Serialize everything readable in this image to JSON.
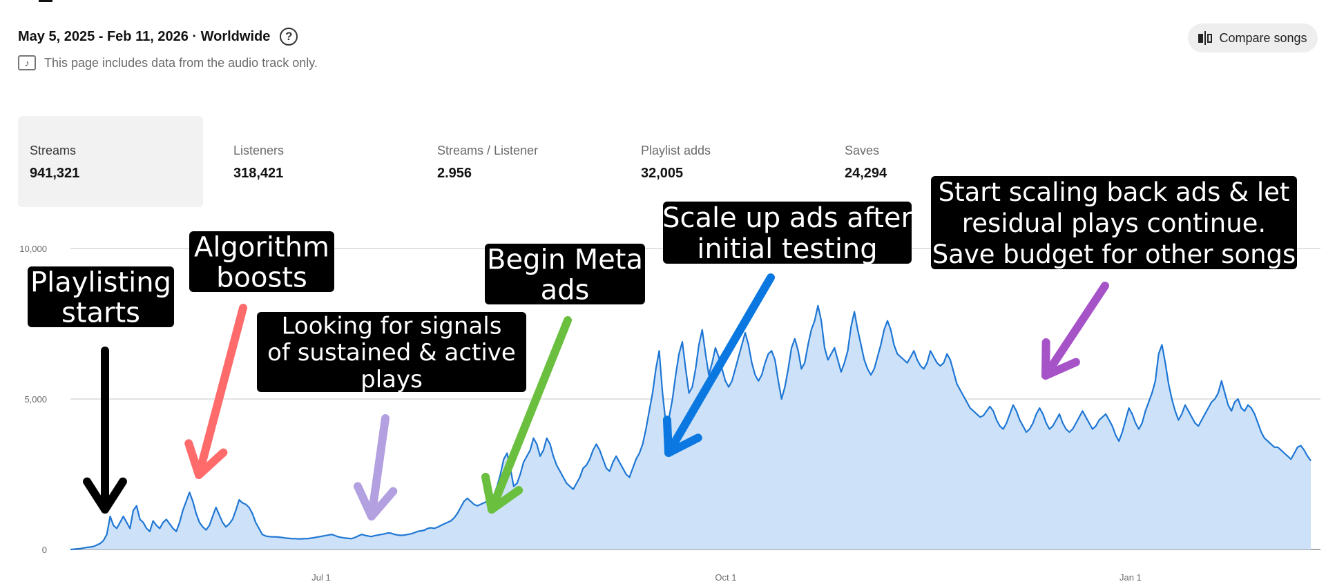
{
  "header": {
    "date_range": "May 5, 2025 - Feb 11, 2026 · Worldwide",
    "help_icon": "question-circle-icon",
    "audio_note": "This page includes data from the audio track only.",
    "audio_note_icon": "music-note-icon"
  },
  "compare": {
    "label": "Compare songs",
    "icon": "compare-icon"
  },
  "metrics": [
    {
      "label": "Streams",
      "value": "941,321",
      "selected": true
    },
    {
      "label": "Listeners",
      "value": "318,421"
    },
    {
      "label": "Streams / Listener",
      "value": "2.956"
    },
    {
      "label": "Playlist adds",
      "value": "32,005"
    },
    {
      "label": "Saves",
      "value": "24,294"
    }
  ],
  "colors": {
    "line": "#1e76d4",
    "area": "#cde2f8",
    "gridline": "#d0d0d0",
    "baseline": "#888888",
    "callout_bg": "#000000",
    "callout_text": "#ffffff",
    "arrow_playlisting": "#000000",
    "arrow_algorithm": "#ff6b6b",
    "arrow_signals": "#b3a0e0",
    "arrow_meta": "#6bbf3f",
    "arrow_scale_up": "#0a78e0",
    "arrow_scale_back": "#a653c8"
  },
  "chart_data": {
    "type": "area",
    "ylim": [
      0,
      10000
    ],
    "y_ticks": [
      "10,000",
      "5,000",
      "0"
    ],
    "x_ticks": [
      "Jul 1",
      "Oct 1",
      "Jan 1"
    ],
    "x_start": "2025-05-05",
    "x_end": "2026-02-11",
    "grid": true,
    "series": [
      {
        "values": [
          0,
          10,
          20,
          30,
          50,
          70,
          80,
          100,
          150,
          200,
          300,
          500,
          1100,
          800,
          700,
          900,
          1100,
          900,
          700,
          1300,
          1450,
          1000,
          900,
          700,
          600,
          950,
          800,
          700,
          900,
          1000,
          850,
          700,
          600,
          900,
          1300,
          1600,
          1900,
          1600,
          1200,
          900,
          750,
          650,
          800,
          1100,
          1400,
          1150,
          900,
          750,
          850,
          1000,
          1300,
          1650,
          1550,
          1500,
          1400,
          1200,
          900,
          700,
          500,
          450,
          430,
          420,
          420,
          410,
          400,
          380,
          370,
          360,
          360,
          350,
          355,
          360,
          365,
          380,
          400,
          420,
          440,
          460,
          480,
          500,
          460,
          420,
          400,
          380,
          370,
          360,
          400,
          450,
          500,
          470,
          450,
          430,
          460,
          480,
          500,
          520,
          550,
          540,
          500,
          480,
          470,
          480,
          500,
          520,
          560,
          600,
          620,
          640,
          700,
          720,
          700,
          740,
          800,
          850,
          900,
          950,
          1050,
          1200,
          1400,
          1600,
          1700,
          1600,
          1500,
          1450,
          1500,
          1550,
          1600,
          1650,
          1800,
          2100,
          2500,
          3000,
          3200,
          2700,
          2100,
          2200,
          2500,
          2900,
          3100,
          3300,
          3700,
          3500,
          3100,
          3300,
          3700,
          3500,
          3100,
          2800,
          2600,
          2400,
          2200,
          2100,
          2000,
          2200,
          2400,
          2700,
          2800,
          3000,
          3300,
          3500,
          3300,
          3000,
          2700,
          2600,
          2900,
          3100,
          2900,
          2700,
          2500,
          2400,
          2700,
          3000,
          3200,
          3500,
          4000,
          4600,
          5200,
          6000,
          6600,
          5200,
          4200,
          4400,
          5000,
          5800,
          6500,
          6900,
          6000,
          5200,
          5400,
          6000,
          6800,
          7300,
          6500,
          5800,
          6200,
          6700,
          6400,
          6000,
          5600,
          5400,
          5600,
          6000,
          6400,
          6800,
          7200,
          6800,
          6200,
          5800,
          5600,
          5800,
          6200,
          6500,
          6600,
          6300,
          5600,
          5000,
          5400,
          6000,
          6700,
          7000,
          6600,
          6000,
          6200,
          6800,
          7300,
          7600,
          8100,
          7600,
          6700,
          6300,
          6500,
          6700,
          6300,
          5900,
          6200,
          6600,
          7400,
          7900,
          7300,
          6800,
          6300,
          6000,
          5800,
          6000,
          6400,
          6800,
          7300,
          7600,
          7300,
          6800,
          6500,
          6400,
          6300,
          6200,
          6400,
          6600,
          6300,
          6100,
          6000,
          6200,
          6600,
          6400,
          6200,
          6100,
          6200,
          6500,
          6300,
          5900,
          5500,
          5300,
          5100,
          4900,
          4700,
          4600,
          4500,
          4400,
          4450,
          4600,
          4750,
          4600,
          4300,
          4100,
          4000,
          4200,
          4500,
          4800,
          4600,
          4300,
          4100,
          3900,
          4000,
          4200,
          4500,
          4700,
          4500,
          4200,
          4000,
          4100,
          4300,
          4500,
          4200,
          4000,
          3900,
          4000,
          4200,
          4400,
          4600,
          4400,
          4200,
          4000,
          4100,
          4300,
          4400,
          4500,
          4300,
          4100,
          3800,
          3600,
          3900,
          4300,
          4700,
          4500,
          4200,
          4000,
          4200,
          4600,
          4900,
          5200,
          5600,
          6500,
          6800,
          6200,
          5500,
          5000,
          4600,
          4300,
          4500,
          4800,
          4600,
          4400,
          4200,
          4100,
          4300,
          4500,
          4700,
          4900,
          5000,
          5200,
          5600,
          5200,
          4800,
          4600,
          4900,
          5000,
          4700,
          4600,
          4800,
          4700,
          4500,
          4200,
          3900,
          3700,
          3600,
          3500,
          3400,
          3400,
          3300,
          3200,
          3100,
          3000,
          3200,
          3400,
          3450,
          3300,
          3100,
          2950
        ]
      }
    ],
    "annotations": [
      {
        "text": "Playlisting starts",
        "lines": [
          "Playlisting",
          "starts"
        ],
        "arrow_color_key": "arrow_playlisting"
      },
      {
        "text": "Algorithm boosts",
        "lines": [
          "Algorithm",
          "boosts"
        ],
        "arrow_color_key": "arrow_algorithm"
      },
      {
        "text": "Looking for signals of sustained & active plays",
        "lines": [
          "Looking for signals",
          "of sustained & active",
          "plays"
        ],
        "arrow_color_key": "arrow_signals"
      },
      {
        "text": "Begin Meta ads",
        "lines": [
          "Begin Meta",
          "ads"
        ],
        "arrow_color_key": "arrow_meta"
      },
      {
        "text": "Scale up ads after initial testing",
        "lines": [
          "Scale up ads after",
          "initial testing"
        ],
        "arrow_color_key": "arrow_scale_up"
      },
      {
        "text": "Start scaling back ads & let residual plays continue. Save budget for other songs",
        "lines": [
          "Start scaling back ads & let",
          "residual plays continue.",
          "Save budget for other songs"
        ],
        "arrow_color_key": "arrow_scale_back"
      }
    ]
  }
}
